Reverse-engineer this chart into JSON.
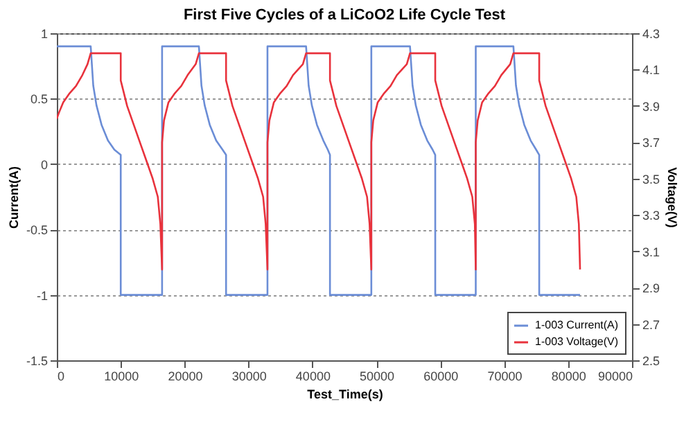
{
  "chart_data": {
    "type": "line",
    "title": "First Five Cycles of a LiCoO2 Life Cycle Test",
    "xlabel": "Test_Time(s)",
    "ylabel": "Current(A)",
    "y2label": "Voltage(V)",
    "xlim": [
      0,
      90000
    ],
    "xticks": [
      0,
      10000,
      20000,
      30000,
      40000,
      50000,
      60000,
      70000,
      80000,
      90000
    ],
    "ylim": [
      -1.5,
      1
    ],
    "yticks": [
      -1.5,
      -1,
      -0.5,
      0,
      0.5,
      1
    ],
    "y2lim": [
      2.5,
      4.3
    ],
    "y2ticks": [
      2.5,
      2.7,
      2.9,
      3.1,
      3.3,
      3.5,
      3.7,
      3.9,
      4.1,
      4.3
    ],
    "grid": "y",
    "legend": "bottom right",
    "series": [
      {
        "name": "1-003 Current(A)",
        "color": "#6b8dd6",
        "x": [
          0,
          5300,
          5700,
          6200,
          7000,
          8000,
          9000,
          10000,
          10000,
          16470,
          16470,
          22230,
          22630,
          23130,
          23930,
          24930,
          25930,
          26480,
          26480,
          32960,
          32960,
          39000,
          39400,
          39900,
          40700,
          41700,
          42400,
          42740,
          42740,
          49210,
          49210,
          55260,
          55660,
          56160,
          56960,
          57960,
          58800,
          59210,
          59210,
          65550,
          65550,
          71440,
          71840,
          72340,
          73140,
          74140,
          75000,
          75480,
          75480,
          81870
        ],
        "values": [
          0.9,
          0.9,
          0.6,
          0.45,
          0.3,
          0.18,
          0.11,
          0.07,
          -1,
          -1,
          0.9,
          0.9,
          0.6,
          0.45,
          0.3,
          0.18,
          0.11,
          0.07,
          -1,
          -1,
          0.9,
          0.9,
          0.6,
          0.45,
          0.3,
          0.18,
          0.11,
          0.07,
          -1,
          -1,
          0.9,
          0.9,
          0.6,
          0.45,
          0.3,
          0.18,
          0.11,
          0.07,
          -1,
          -1,
          0.9,
          0.9,
          0.6,
          0.45,
          0.3,
          0.18,
          0.11,
          0.07,
          -1,
          -1
        ]
      },
      {
        "name": "1-003 Voltage(V)",
        "color": "#e8323c",
        "axis": "y2",
        "x": [
          0,
          300,
          1000,
          2000,
          3000,
          4000,
          4800,
          5300,
          10000,
          10000,
          11000,
          12000,
          13000,
          14000,
          15000,
          15800,
          16200,
          16470,
          16470,
          16770,
          17470,
          18470,
          19470,
          20470,
          21730,
          22230,
          26480,
          26480,
          27480,
          28480,
          29480,
          30480,
          31480,
          32280,
          32680,
          32960,
          32960,
          33260,
          33960,
          34960,
          35960,
          36960,
          38500,
          39000,
          42740,
          42740,
          43740,
          44740,
          45740,
          46740,
          47740,
          48540,
          48940,
          49210,
          49210,
          49510,
          50210,
          51210,
          52210,
          53210,
          54760,
          55260,
          59210,
          59210,
          60210,
          61210,
          62210,
          63210,
          64210,
          65010,
          65410,
          65550,
          65550,
          65850,
          66550,
          67550,
          68550,
          69550,
          70940,
          71440,
          75480,
          75480,
          76480,
          77480,
          78480,
          79480,
          80480,
          81280,
          81680,
          81870
        ],
        "values": [
          3.83,
          3.86,
          3.92,
          3.97,
          4.01,
          4.07,
          4.13,
          4.19,
          4.19,
          4.04,
          3.9,
          3.8,
          3.7,
          3.6,
          3.5,
          3.4,
          3.25,
          3.0,
          3.7,
          3.82,
          3.92,
          3.97,
          4.01,
          4.07,
          4.13,
          4.19,
          4.19,
          4.04,
          3.9,
          3.8,
          3.7,
          3.6,
          3.5,
          3.4,
          3.25,
          3.0,
          3.7,
          3.82,
          3.92,
          3.97,
          4.01,
          4.07,
          4.13,
          4.19,
          4.19,
          4.04,
          3.9,
          3.8,
          3.7,
          3.6,
          3.5,
          3.4,
          3.25,
          3.0,
          3.7,
          3.82,
          3.92,
          3.97,
          4.01,
          4.07,
          4.13,
          4.19,
          4.19,
          4.04,
          3.9,
          3.8,
          3.7,
          3.6,
          3.5,
          3.4,
          3.25,
          3.0,
          3.7,
          3.82,
          3.92,
          3.97,
          4.01,
          4.07,
          4.13,
          4.19,
          4.19,
          4.04,
          3.9,
          3.8,
          3.7,
          3.6,
          3.5,
          3.4,
          3.25,
          3.0
        ]
      }
    ]
  }
}
